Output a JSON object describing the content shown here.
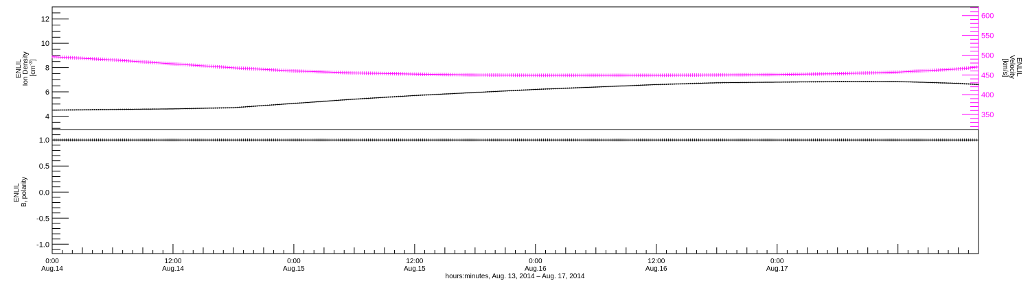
{
  "chart_data": [
    {
      "type": "line",
      "panel": "top",
      "ylabel_left": [
        "ENLIL",
        "Ion Density",
        "[cm",
        "-3",
        "]"
      ],
      "ylabel_right": [
        "ENLIL",
        "Velocity",
        "[km/s]"
      ],
      "ylim_left": [
        2.9,
        13.0
      ],
      "ylim_right": [
        312,
        622
      ],
      "yticks_left": [
        4,
        6,
        8,
        10,
        12
      ],
      "yticks_right": [
        350,
        400,
        450,
        500,
        550,
        600
      ],
      "grid": false,
      "series": [
        {
          "axis": "left",
          "color": "#000000",
          "x_hours": [
            0,
            6,
            12,
            18,
            24,
            30,
            36,
            42,
            48,
            54,
            60,
            66,
            72,
            78,
            84,
            90,
            92
          ],
          "values": [
            4.5,
            4.55,
            4.6,
            4.7,
            5.05,
            5.4,
            5.7,
            5.95,
            6.2,
            6.4,
            6.6,
            6.75,
            6.8,
            6.85,
            6.85,
            6.7,
            6.6
          ]
        },
        {
          "axis": "right",
          "color": "#ff00ff",
          "x_hours": [
            0,
            6,
            12,
            18,
            24,
            30,
            36,
            42,
            48,
            54,
            60,
            66,
            72,
            78,
            84,
            90,
            92
          ],
          "values": [
            496,
            488,
            478,
            468,
            460,
            455,
            452,
            450,
            449,
            449,
            449,
            450,
            451,
            453,
            457,
            465,
            470
          ]
        }
      ]
    },
    {
      "type": "line",
      "panel": "bottom",
      "ylabel_left": [
        "ENLIL",
        "B",
        "r",
        " polarity"
      ],
      "ylim": [
        -1.18,
        1.2
      ],
      "yticks": [
        "-1.0",
        "-0.5",
        "0.0",
        "0.5",
        "1.0"
      ],
      "grid": false,
      "series": [
        {
          "color": "#000000",
          "x_hours": [
            0,
            92
          ],
          "values": [
            1.0,
            1.0
          ]
        }
      ]
    }
  ],
  "xaxis": {
    "range_hours": [
      0,
      92
    ],
    "ticks": [
      {
        "h": 0,
        "time": "0:00",
        "date": "Aug.14"
      },
      {
        "h": 12,
        "time": "12:00",
        "date": "Aug.14"
      },
      {
        "h": 24,
        "time": "0:00",
        "date": "Aug.15"
      },
      {
        "h": 36,
        "time": "12:00",
        "date": "Aug.15"
      },
      {
        "h": 48,
        "time": "0:00",
        "date": "Aug.16"
      },
      {
        "h": 60,
        "time": "12:00",
        "date": "Aug.16"
      },
      {
        "h": 72,
        "time": "0:00",
        "date": "Aug.17"
      }
    ],
    "label": "hours:minutes, Aug. 13, 2014 – Aug. 17, 2014"
  },
  "colors": {
    "density": "#000000",
    "velocity": "#ff00ff",
    "axis": "#000000"
  }
}
